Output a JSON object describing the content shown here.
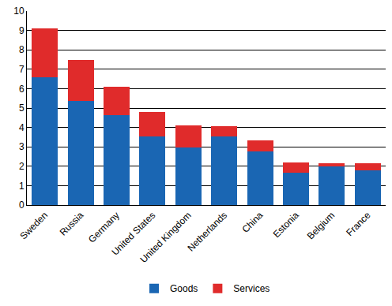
{
  "chart_data": {
    "type": "bar",
    "categories": [
      "Sweden",
      "Russia",
      "Germany",
      "United States",
      "United Kingdom",
      "Netherlands",
      "China",
      "Estonia",
      "Belgium",
      "France"
    ],
    "series": [
      {
        "name": "Goods",
        "color": "#1a66b3",
        "values": [
          6.6,
          5.35,
          4.65,
          3.55,
          2.95,
          3.55,
          2.75,
          1.65,
          2.0,
          1.8
        ]
      },
      {
        "name": "Services",
        "color": "#e02b2b",
        "values": [
          2.5,
          2.15,
          1.45,
          1.25,
          1.15,
          0.5,
          0.6,
          0.55,
          0.15,
          0.35
        ]
      }
    ],
    "stacked": true,
    "ylim": [
      0,
      10
    ],
    "yticks": [
      0,
      1,
      2,
      3,
      4,
      5,
      6,
      7,
      8,
      9,
      10
    ],
    "grid": true,
    "legend": "bottom"
  }
}
